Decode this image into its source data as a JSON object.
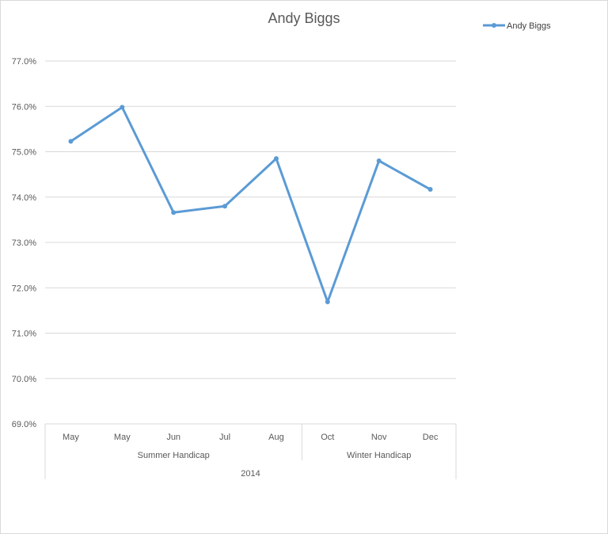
{
  "chart_data": {
    "type": "line",
    "title": "Andy Biggs",
    "xlabel": "",
    "ylabel": "",
    "categories": [
      "May",
      "May",
      "Jun",
      "Jul",
      "Aug",
      "Oct",
      "Nov",
      "Dec"
    ],
    "groups": [
      {
        "label": "Summer Handicap",
        "span": 5
      },
      {
        "label": "Winter Handicap",
        "span": 3
      }
    ],
    "year_label": "2014",
    "series": [
      {
        "name": "Andy Biggs",
        "values": [
          75.23,
          75.98,
          73.66,
          73.8,
          74.85,
          71.69,
          74.8,
          74.17
        ],
        "color": "#5b9bd5"
      }
    ],
    "ylim": [
      69.0,
      77.0
    ],
    "y_ticks": [
      "69.0%",
      "70.0%",
      "71.0%",
      "72.0%",
      "73.0%",
      "74.0%",
      "75.0%",
      "76.0%",
      "77.0%"
    ],
    "grid": true,
    "legend_position": "top-right"
  }
}
